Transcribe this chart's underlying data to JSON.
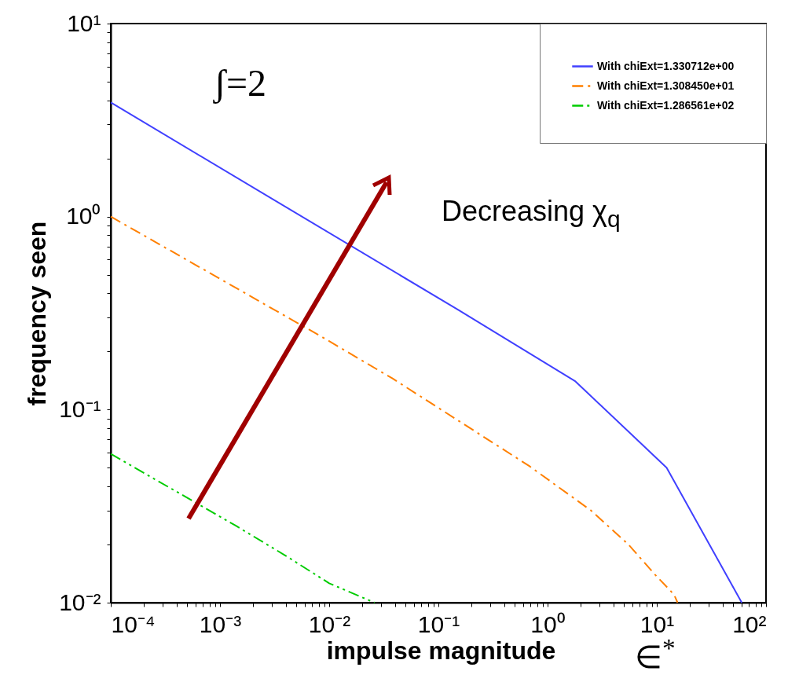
{
  "chart_data": {
    "type": "line",
    "xlabel": "impulse magnitude",
    "ylabel": "frequency seen",
    "log": "xy",
    "grid": false,
    "legend": "top right",
    "marker": "none",
    "xlim": [
      0.0001,
      100
    ],
    "ylim": [
      0.01,
      10
    ],
    "xticks": [
      {
        "value": 0.0001,
        "label": "10⁻⁴"
      },
      {
        "value": 0.0002,
        "label": null
      },
      {
        "value": 0.0003,
        "label": null
      },
      {
        "value": 0.0004,
        "label": null
      },
      {
        "value": 0.0005,
        "label": null
      },
      {
        "value": 0.0006,
        "label": null
      },
      {
        "value": 0.0007,
        "label": null
      },
      {
        "value": 0.0008,
        "label": null
      },
      {
        "value": 0.0009,
        "label": null
      },
      {
        "value": 0.001,
        "label": "10⁻³"
      },
      {
        "value": 0.002,
        "label": null
      },
      {
        "value": 0.003,
        "label": null
      },
      {
        "value": 0.004,
        "label": null
      },
      {
        "value": 0.005,
        "label": null
      },
      {
        "value": 0.006,
        "label": null
      },
      {
        "value": 0.007,
        "label": null
      },
      {
        "value": 0.008,
        "label": null
      },
      {
        "value": 0.009,
        "label": null
      },
      {
        "value": 0.01,
        "label": "10⁻²"
      },
      {
        "value": 0.02,
        "label": null
      },
      {
        "value": 0.03,
        "label": null
      },
      {
        "value": 0.04,
        "label": null
      },
      {
        "value": 0.05,
        "label": null
      },
      {
        "value": 0.06,
        "label": null
      },
      {
        "value": 0.07,
        "label": null
      },
      {
        "value": 0.08,
        "label": null
      },
      {
        "value": 0.09,
        "label": null
      },
      {
        "value": 0.1,
        "label": "10⁻¹"
      },
      {
        "value": 0.2,
        "label": null
      },
      {
        "value": 0.3,
        "label": null
      },
      {
        "value": 0.4,
        "label": null
      },
      {
        "value": 0.5,
        "label": null
      },
      {
        "value": 0.6,
        "label": null
      },
      {
        "value": 0.7,
        "label": null
      },
      {
        "value": 0.8,
        "label": null
      },
      {
        "value": 0.9,
        "label": null
      },
      {
        "value": 1,
        "label": "10⁰"
      },
      {
        "value": 2,
        "label": null
      },
      {
        "value": 3,
        "label": null
      },
      {
        "value": 4,
        "label": null
      },
      {
        "value": 5,
        "label": null
      },
      {
        "value": 6,
        "label": null
      },
      {
        "value": 7,
        "label": null
      },
      {
        "value": 8,
        "label": null
      },
      {
        "value": 9,
        "label": null
      },
      {
        "value": 10,
        "label": "10¹"
      },
      {
        "value": 20,
        "label": null
      },
      {
        "value": 30,
        "label": null
      },
      {
        "value": 40,
        "label": null
      },
      {
        "value": 50,
        "label": null
      },
      {
        "value": 60,
        "label": null
      },
      {
        "value": 70,
        "label": null
      },
      {
        "value": 80,
        "label": null
      },
      {
        "value": 90,
        "label": null
      },
      {
        "value": 100,
        "label": "10²"
      }
    ],
    "yticks": [
      {
        "value": 0.01,
        "label": "10⁻²"
      },
      {
        "value": 0.02,
        "label": null
      },
      {
        "value": 0.03,
        "label": null
      },
      {
        "value": 0.04,
        "label": null
      },
      {
        "value": 0.05,
        "label": null
      },
      {
        "value": 0.06,
        "label": null
      },
      {
        "value": 0.07,
        "label": null
      },
      {
        "value": 0.08,
        "label": null
      },
      {
        "value": 0.09,
        "label": null
      },
      {
        "value": 0.1,
        "label": "10⁻¹"
      },
      {
        "value": 0.2,
        "label": null
      },
      {
        "value": 0.3,
        "label": null
      },
      {
        "value": 0.4,
        "label": null
      },
      {
        "value": 0.5,
        "label": null
      },
      {
        "value": 0.6,
        "label": null
      },
      {
        "value": 0.7,
        "label": null
      },
      {
        "value": 0.8,
        "label": null
      },
      {
        "value": 0.9,
        "label": null
      },
      {
        "value": 1,
        "label": "10⁰"
      },
      {
        "value": 2,
        "label": null
      },
      {
        "value": 3,
        "label": null
      },
      {
        "value": 4,
        "label": null
      },
      {
        "value": 5,
        "label": null
      },
      {
        "value": 6,
        "label": null
      },
      {
        "value": 7,
        "label": null
      },
      {
        "value": 8,
        "label": null
      },
      {
        "value": 9,
        "label": null
      },
      {
        "value": 10,
        "label": "10¹"
      }
    ],
    "series": [
      {
        "name": "With chiExt=1.330712e+00",
        "color": "#4040ff",
        "line_style": "solid",
        "x": [
          0.0001,
          0.15,
          1.8,
          12.3,
          60
        ],
        "values": [
          3.9,
          0.33,
          0.14,
          0.05,
          0.01
        ]
      },
      {
        "name": "With chiExt=1.308450e+01",
        "color": "#ff8000",
        "line_style": "dashed",
        "x": [
          0.0001,
          0.0087,
          0.038,
          0.68,
          2.5,
          5.5,
          9.6,
          14.4,
          15.5
        ],
        "values": [
          1.0,
          0.237,
          0.145,
          0.051,
          0.03,
          0.02,
          0.014,
          0.011,
          0.01
        ]
      },
      {
        "name": "With chiExt=1.286561e+02",
        "color": "#00cc00",
        "line_style": "dotted",
        "x": [
          0.0001,
          0.0014,
          0.004,
          0.01,
          0.026
        ],
        "values": [
          0.059,
          0.025,
          0.0175,
          0.0126,
          0.01
        ]
      }
    ],
    "annotations": [
      "ʃ=2",
      "Decreasing χ$_{q}$",
      "∈$^{*}$"
    ]
  }
}
